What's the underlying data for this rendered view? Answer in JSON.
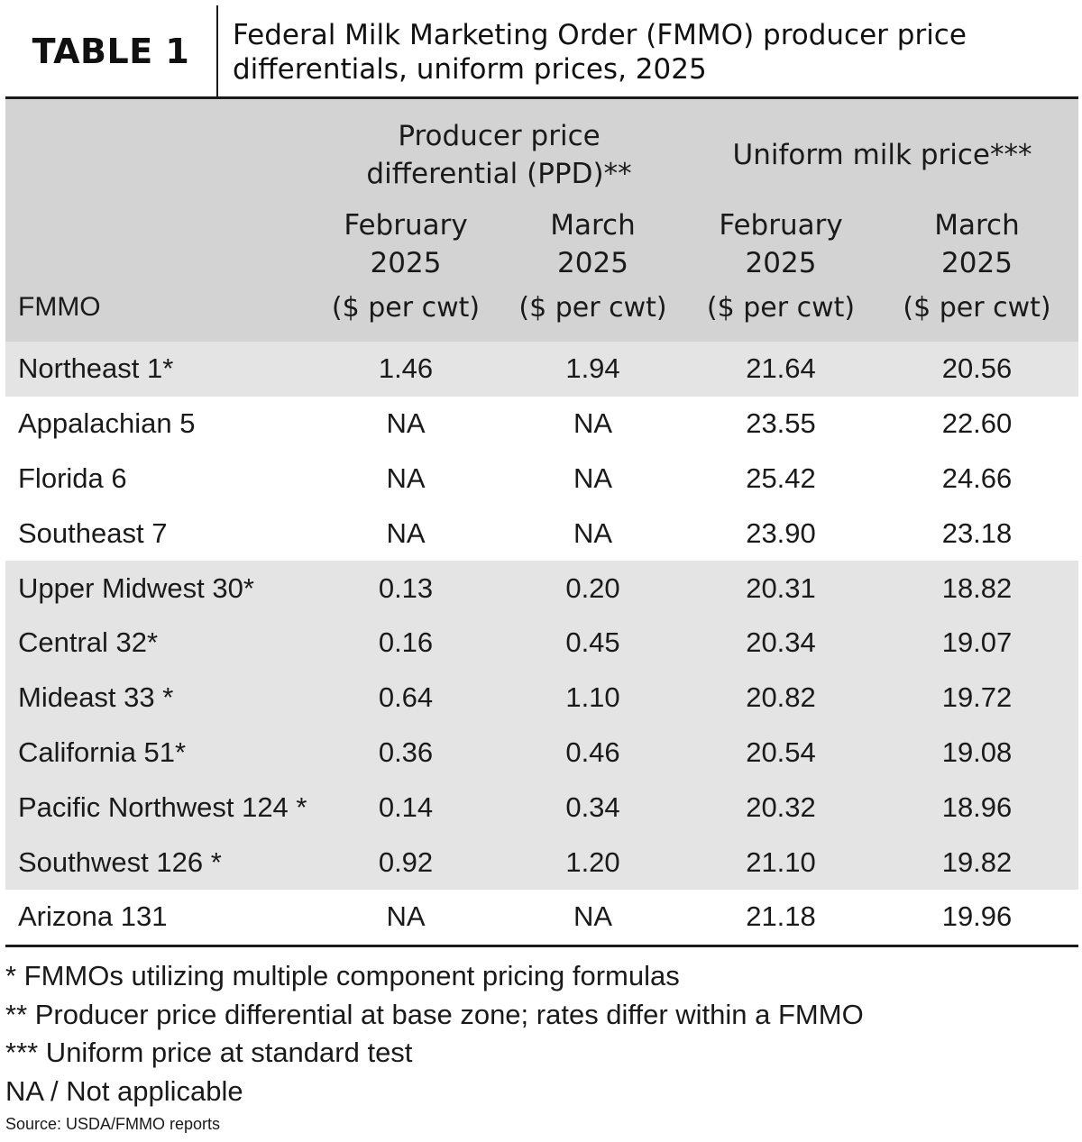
{
  "table_label": "TABLE 1",
  "title_line1": "Federal Milk Marketing Order (FMMO) producer price",
  "title_line2": "differentials, uniform prices, 2025",
  "header": {
    "group_ppd_line1": "Producer price",
    "group_ppd_line2": "differential (PPD)**",
    "group_uniform": "Uniform milk price***",
    "col1_line1": "February",
    "col1_line2": "2025",
    "col2_line1": "March",
    "col2_line2": "2025",
    "col3_line1": "February",
    "col3_line2": "2025",
    "col4_line1": "March",
    "col4_line2": "2025",
    "fmmo": "FMMO",
    "unit": "($ per cwt)"
  },
  "rows": [
    {
      "name": "Northeast 1*",
      "ppd_feb": "1.46",
      "ppd_mar": "1.94",
      "uni_feb": "21.64",
      "uni_mar": "20.56"
    },
    {
      "name": "Appalachian 5",
      "ppd_feb": "NA",
      "ppd_mar": "NA",
      "uni_feb": "23.55",
      "uni_mar": "22.60"
    },
    {
      "name": "Florida 6",
      "ppd_feb": "NA",
      "ppd_mar": "NA",
      "uni_feb": "25.42",
      "uni_mar": "24.66"
    },
    {
      "name": "Southeast 7",
      "ppd_feb": "NA",
      "ppd_mar": "NA",
      "uni_feb": "23.90",
      "uni_mar": "23.18"
    },
    {
      "name": "Upper Midwest 30*",
      "ppd_feb": "0.13",
      "ppd_mar": "0.20",
      "uni_feb": "20.31",
      "uni_mar": "18.82"
    },
    {
      "name": "Central 32*",
      "ppd_feb": "0.16",
      "ppd_mar": "0.45",
      "uni_feb": "20.34",
      "uni_mar": "19.07"
    },
    {
      "name": "Mideast 33 *",
      "ppd_feb": "0.64",
      "ppd_mar": "1.10",
      "uni_feb": "20.82",
      "uni_mar": "19.72"
    },
    {
      "name": "California 51*",
      "ppd_feb": "0.36",
      "ppd_mar": "0.46",
      "uni_feb": "20.54",
      "uni_mar": "19.08"
    },
    {
      "name": "Pacific Northwest 124 *",
      "ppd_feb": "0.14",
      "ppd_mar": "0.34",
      "uni_feb": "20.32",
      "uni_mar": "18.96"
    },
    {
      "name": "Southwest 126 *",
      "ppd_feb": "0.92",
      "ppd_mar": "1.20",
      "uni_feb": "21.10",
      "uni_mar": "19.82"
    },
    {
      "name": "Arizona 131",
      "ppd_feb": "NA",
      "ppd_mar": "NA",
      "uni_feb": "21.18",
      "uni_mar": "19.96"
    }
  ],
  "notes": [
    "* FMMOs utilizing multiple component pricing formulas",
    "** Producer price differential at base zone; rates differ within a FMMO",
    "*** Uniform price at standard test",
    "NA / Not applicable"
  ],
  "source": "Source: USDA/FMMO reports",
  "colors": {
    "header_bg": "#d3d3d3",
    "shaded_row_bg": "#e4e4e4",
    "rule": "#1a1a1a"
  }
}
